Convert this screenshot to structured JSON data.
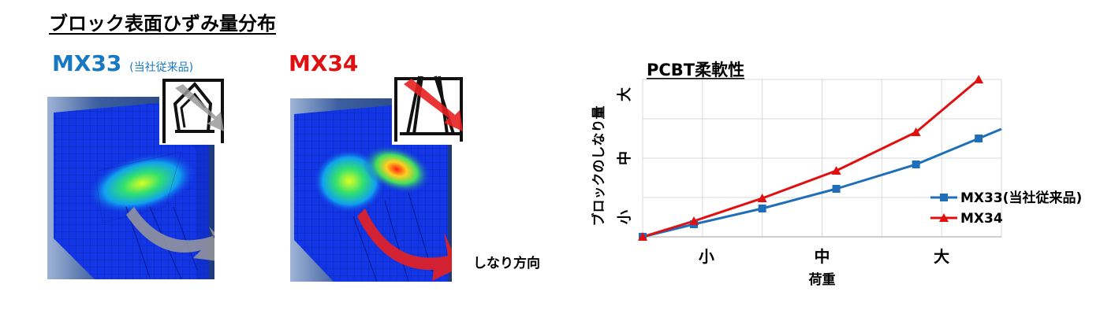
{
  "page_title": "ブロック表面ひずみ量分布",
  "left_panel": {
    "mx33": {
      "name": "MX33",
      "note": "(当社従来品)",
      "color": "#1878c0"
    },
    "mx34": {
      "name": "MX34",
      "color": "#e01010"
    },
    "bend_direction_label": "しなり方向"
  },
  "chart_title": "PCBT柔軟性",
  "chart_data": {
    "type": "line",
    "xlabel": "荷重",
    "ylabel": "ブロックのしなり量",
    "categories": [
      "小",
      "中",
      "大"
    ],
    "y_ticks": [
      "小",
      "中",
      "大"
    ],
    "x": [
      0,
      0.9,
      2.1,
      3.4,
      4.8,
      5.9
    ],
    "xlim": [
      0,
      6.3
    ],
    "ylim": [
      0,
      4
    ],
    "grid": true,
    "legend_position": "right",
    "series": [
      {
        "name": "MX33(当社従来品)",
        "color": "#1f6fb8",
        "marker": "square",
        "x": [
          0,
          0.9,
          2.1,
          3.4,
          4.8,
          5.9
        ],
        "values": [
          0,
          0.32,
          0.72,
          1.22,
          1.84,
          2.5
        ]
      },
      {
        "name": "MX34",
        "color": "#e01010",
        "marker": "triangle",
        "x": [
          0,
          0.9,
          2.1,
          3.4,
          4.8,
          5.9
        ],
        "values": [
          0,
          0.4,
          0.98,
          1.68,
          2.66,
          4.0
        ]
      }
    ]
  },
  "icons": {
    "arrow": "curved-arrow-icon",
    "inset": "deformation-inset-icon"
  }
}
